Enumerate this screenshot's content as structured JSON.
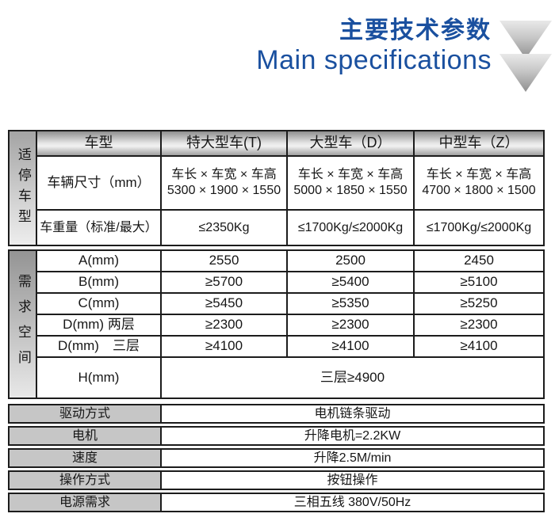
{
  "header": {
    "title_zh": "主要技术参数",
    "title_en": "Main specifications"
  },
  "colors": {
    "title_blue": "#1a509f",
    "border_black": "#1c1c1c",
    "label_gray": "#c6c6c6",
    "header_gradient_gray": "#8e8e8e"
  },
  "table": {
    "header_row": {
      "label": "车型",
      "columns": [
        "特大型车(T)",
        "大型车（D）",
        "中型车（Z）"
      ]
    },
    "parking_section": {
      "side_label": "适停车型",
      "dims_row": {
        "label": "车辆尺寸（mm）",
        "formula": "车长 × 车宽 × 车高",
        "values": [
          "5300 × 1900 × 1550",
          "5000 × 1850 × 1550",
          "4700 × 1800 × 1500"
        ]
      },
      "weight_row": {
        "label": "车重量（标准/最大）",
        "values": [
          "≤2350Kg",
          "≤1700Kg/≤2000Kg",
          "≤1700Kg/≤2000Kg"
        ]
      }
    },
    "space_section": {
      "side_label": "需求空间",
      "rows": [
        {
          "label": "A(mm)",
          "values": [
            "2550",
            "2500",
            "2450"
          ]
        },
        {
          "label": "B(mm)",
          "values": [
            "≥5700",
            "≥5400",
            "≥5100"
          ]
        },
        {
          "label": "C(mm)",
          "values": [
            "≥5450",
            "≥5350",
            "≥5250"
          ]
        },
        {
          "label": "D(mm) 两层",
          "values": [
            "≥2300",
            "≥2300",
            "≥2300"
          ]
        },
        {
          "label": "D(mm)　三层",
          "values": [
            "≥4100",
            "≥4100",
            "≥4100"
          ]
        }
      ],
      "h_row": {
        "label": "H(mm)",
        "value": "三层≥4900"
      }
    },
    "general_rows": [
      {
        "label": "驱动方式",
        "value": "电机链条驱动"
      },
      {
        "label": "电机",
        "value": "升降电机=2.2KW"
      },
      {
        "label": "速度",
        "value": "升降2.5M/min"
      },
      {
        "label": "操作方式",
        "value": "按钮操作"
      },
      {
        "label": "电源需求",
        "value": "三相五线 380V/50Hz"
      }
    ]
  }
}
